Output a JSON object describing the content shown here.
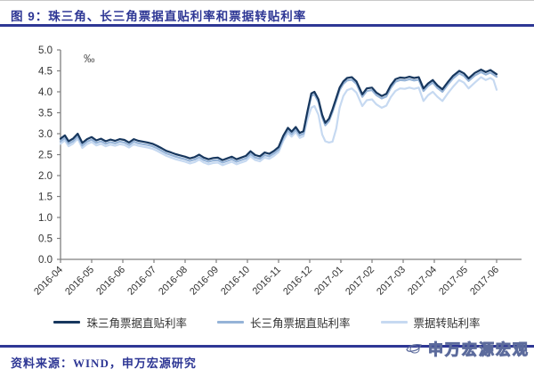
{
  "header": {
    "title": "图 9：珠三角、长三角票据直贴利率和票据转贴利率"
  },
  "footer": {
    "source_label": "资料来源：WIND，申万宏源研究",
    "watermark_text": "申万宏源宏观"
  },
  "colors": {
    "accent": "#2e3795",
    "axis": "#7f7f7f",
    "tick_label": "#333333",
    "unit_label": "#595959",
    "watermark_stroke": "#5c6b9c"
  },
  "chart_data": {
    "type": "line",
    "unit_label": "‰",
    "grid": false,
    "legend_position": "bottom",
    "ylim": [
      0.0,
      5.0
    ],
    "y_tick_labels": [
      "0.0",
      "0.5",
      "1.0",
      "1.5",
      "2.0",
      "2.5",
      "3.0",
      "3.5",
      "4.0",
      "4.5",
      "5.0"
    ],
    "x_tick_labels": [
      "2016-04",
      "2016-05",
      "2016-06",
      "2016-07",
      "2016-08",
      "2016-09",
      "2016-10",
      "2016-11",
      "2016-12",
      "2017-01",
      "2017-02",
      "2017-03",
      "2017-04",
      "2017-05",
      "2017-06"
    ],
    "x_unit": "months since 2016-04",
    "series": [
      {
        "name": "珠三角票据直贴利率",
        "color": "#17375e",
        "points": [
          [
            0,
            2.88
          ],
          [
            0.14,
            2.96
          ],
          [
            0.26,
            2.82
          ],
          [
            0.4,
            2.88
          ],
          [
            0.55,
            3.0
          ],
          [
            0.7,
            2.78
          ],
          [
            0.85,
            2.87
          ],
          [
            1,
            2.92
          ],
          [
            1.15,
            2.84
          ],
          [
            1.3,
            2.88
          ],
          [
            1.45,
            2.82
          ],
          [
            1.6,
            2.86
          ],
          [
            1.75,
            2.83
          ],
          [
            1.9,
            2.87
          ],
          [
            2.05,
            2.85
          ],
          [
            2.2,
            2.79
          ],
          [
            2.35,
            2.87
          ],
          [
            2.5,
            2.83
          ],
          [
            2.65,
            2.81
          ],
          [
            2.8,
            2.79
          ],
          [
            2.95,
            2.76
          ],
          [
            3.1,
            2.71
          ],
          [
            3.25,
            2.65
          ],
          [
            3.4,
            2.59
          ],
          [
            3.55,
            2.55
          ],
          [
            3.7,
            2.51
          ],
          [
            3.85,
            2.48
          ],
          [
            4,
            2.45
          ],
          [
            4.15,
            2.41
          ],
          [
            4.3,
            2.44
          ],
          [
            4.45,
            2.5
          ],
          [
            4.6,
            2.43
          ],
          [
            4.75,
            2.39
          ],
          [
            4.9,
            2.42
          ],
          [
            5.05,
            2.43
          ],
          [
            5.2,
            2.37
          ],
          [
            5.35,
            2.41
          ],
          [
            5.5,
            2.45
          ],
          [
            5.65,
            2.39
          ],
          [
            5.8,
            2.43
          ],
          [
            5.95,
            2.47
          ],
          [
            6.1,
            2.58
          ],
          [
            6.25,
            2.49
          ],
          [
            6.4,
            2.46
          ],
          [
            6.55,
            2.55
          ],
          [
            6.7,
            2.52
          ],
          [
            6.85,
            2.59
          ],
          [
            7,
            2.68
          ],
          [
            7.15,
            2.95
          ],
          [
            7.3,
            3.14
          ],
          [
            7.42,
            3.05
          ],
          [
            7.55,
            3.16
          ],
          [
            7.68,
            3.02
          ],
          [
            7.8,
            3.06
          ],
          [
            7.93,
            3.55
          ],
          [
            8.05,
            3.96
          ],
          [
            8.15,
            4.0
          ],
          [
            8.28,
            3.82
          ],
          [
            8.4,
            3.45
          ],
          [
            8.5,
            3.26
          ],
          [
            8.62,
            3.36
          ],
          [
            8.73,
            3.58
          ],
          [
            8.85,
            3.85
          ],
          [
            8.96,
            4.1
          ],
          [
            9.08,
            4.25
          ],
          [
            9.2,
            4.33
          ],
          [
            9.35,
            4.35
          ],
          [
            9.5,
            4.25
          ],
          [
            9.69,
            3.94
          ],
          [
            9.83,
            4.08
          ],
          [
            10,
            4.1
          ],
          [
            10.14,
            3.98
          ],
          [
            10.31,
            3.9
          ],
          [
            10.46,
            3.95
          ],
          [
            10.6,
            4.15
          ],
          [
            10.75,
            4.3
          ],
          [
            10.9,
            4.34
          ],
          [
            11.05,
            4.33
          ],
          [
            11.2,
            4.36
          ],
          [
            11.35,
            4.33
          ],
          [
            11.5,
            4.35
          ],
          [
            11.65,
            4.08
          ],
          [
            11.8,
            4.2
          ],
          [
            11.95,
            4.28
          ],
          [
            12.1,
            4.15
          ],
          [
            12.26,
            4.06
          ],
          [
            12.45,
            4.25
          ],
          [
            12.6,
            4.38
          ],
          [
            12.8,
            4.5
          ],
          [
            12.95,
            4.44
          ],
          [
            13.1,
            4.32
          ],
          [
            13.3,
            4.45
          ],
          [
            13.5,
            4.53
          ],
          [
            13.65,
            4.47
          ],
          [
            13.8,
            4.52
          ],
          [
            13.9,
            4.47
          ],
          [
            14,
            4.42
          ]
        ]
      },
      {
        "name": "长三角票据直贴利率",
        "color": "#95b3d7",
        "points": [
          [
            0,
            2.82
          ],
          [
            0.14,
            2.9
          ],
          [
            0.26,
            2.76
          ],
          [
            0.4,
            2.82
          ],
          [
            0.55,
            2.94
          ],
          [
            0.7,
            2.72
          ],
          [
            0.85,
            2.81
          ],
          [
            1,
            2.86
          ],
          [
            1.15,
            2.78
          ],
          [
            1.3,
            2.82
          ],
          [
            1.45,
            2.76
          ],
          [
            1.6,
            2.8
          ],
          [
            1.75,
            2.77
          ],
          [
            1.9,
            2.81
          ],
          [
            2.05,
            2.79
          ],
          [
            2.2,
            2.73
          ],
          [
            2.35,
            2.81
          ],
          [
            2.5,
            2.77
          ],
          [
            2.65,
            2.75
          ],
          [
            2.8,
            2.73
          ],
          [
            2.95,
            2.7
          ],
          [
            3.1,
            2.65
          ],
          [
            3.25,
            2.59
          ],
          [
            3.4,
            2.53
          ],
          [
            3.55,
            2.49
          ],
          [
            3.7,
            2.45
          ],
          [
            3.85,
            2.42
          ],
          [
            4,
            2.39
          ],
          [
            4.15,
            2.35
          ],
          [
            4.3,
            2.38
          ],
          [
            4.45,
            2.44
          ],
          [
            4.6,
            2.37
          ],
          [
            4.75,
            2.33
          ],
          [
            4.9,
            2.36
          ],
          [
            5.05,
            2.37
          ],
          [
            5.2,
            2.31
          ],
          [
            5.35,
            2.35
          ],
          [
            5.5,
            2.39
          ],
          [
            5.65,
            2.33
          ],
          [
            5.8,
            2.37
          ],
          [
            5.95,
            2.41
          ],
          [
            6.1,
            2.52
          ],
          [
            6.25,
            2.43
          ],
          [
            6.4,
            2.4
          ],
          [
            6.55,
            2.49
          ],
          [
            6.7,
            2.46
          ],
          [
            6.85,
            2.53
          ],
          [
            7,
            2.62
          ],
          [
            7.15,
            2.89
          ],
          [
            7.3,
            3.08
          ],
          [
            7.42,
            2.99
          ],
          [
            7.55,
            3.1
          ],
          [
            7.68,
            2.96
          ],
          [
            7.8,
            3.0
          ],
          [
            7.93,
            3.49
          ],
          [
            8.05,
            3.9
          ],
          [
            8.15,
            3.94
          ],
          [
            8.28,
            3.76
          ],
          [
            8.4,
            3.39
          ],
          [
            8.5,
            3.2
          ],
          [
            8.62,
            3.3
          ],
          [
            8.73,
            3.52
          ],
          [
            8.85,
            3.79
          ],
          [
            8.96,
            4.04
          ],
          [
            9.08,
            4.19
          ],
          [
            9.2,
            4.27
          ],
          [
            9.35,
            4.29
          ],
          [
            9.5,
            4.19
          ],
          [
            9.69,
            3.88
          ],
          [
            9.83,
            4.02
          ],
          [
            10,
            4.04
          ],
          [
            10.14,
            3.92
          ],
          [
            10.31,
            3.84
          ],
          [
            10.46,
            3.89
          ],
          [
            10.6,
            4.09
          ],
          [
            10.75,
            4.24
          ],
          [
            10.9,
            4.28
          ],
          [
            11.05,
            4.27
          ],
          [
            11.2,
            4.3
          ],
          [
            11.35,
            4.27
          ],
          [
            11.5,
            4.29
          ],
          [
            11.65,
            4.02
          ],
          [
            11.8,
            4.14
          ],
          [
            11.95,
            4.22
          ],
          [
            12.1,
            4.09
          ],
          [
            12.26,
            4.0
          ],
          [
            12.45,
            4.19
          ],
          [
            12.6,
            4.32
          ],
          [
            12.8,
            4.44
          ],
          [
            12.95,
            4.38
          ],
          [
            13.1,
            4.26
          ],
          [
            13.3,
            4.39
          ],
          [
            13.5,
            4.47
          ],
          [
            13.65,
            4.41
          ],
          [
            13.8,
            4.46
          ],
          [
            13.9,
            4.41
          ],
          [
            14,
            4.36
          ]
        ]
      },
      {
        "name": "票据转贴利率",
        "color": "#c6d9f1",
        "points": [
          [
            0,
            2.76
          ],
          [
            0.14,
            2.84
          ],
          [
            0.26,
            2.7
          ],
          [
            0.4,
            2.76
          ],
          [
            0.55,
            2.88
          ],
          [
            0.7,
            2.66
          ],
          [
            0.85,
            2.75
          ],
          [
            1,
            2.8
          ],
          [
            1.15,
            2.72
          ],
          [
            1.3,
            2.76
          ],
          [
            1.45,
            2.7
          ],
          [
            1.6,
            2.74
          ],
          [
            1.75,
            2.71
          ],
          [
            1.9,
            2.75
          ],
          [
            2.05,
            2.73
          ],
          [
            2.2,
            2.67
          ],
          [
            2.35,
            2.75
          ],
          [
            2.5,
            2.71
          ],
          [
            2.65,
            2.69
          ],
          [
            2.8,
            2.67
          ],
          [
            2.95,
            2.64
          ],
          [
            3.1,
            2.59
          ],
          [
            3.25,
            2.53
          ],
          [
            3.4,
            2.47
          ],
          [
            3.55,
            2.43
          ],
          [
            3.7,
            2.39
          ],
          [
            3.85,
            2.36
          ],
          [
            4,
            2.33
          ],
          [
            4.15,
            2.29
          ],
          [
            4.3,
            2.32
          ],
          [
            4.45,
            2.38
          ],
          [
            4.6,
            2.31
          ],
          [
            4.75,
            2.27
          ],
          [
            4.9,
            2.3
          ],
          [
            5.05,
            2.31
          ],
          [
            5.2,
            2.25
          ],
          [
            5.35,
            2.29
          ],
          [
            5.5,
            2.33
          ],
          [
            5.65,
            2.27
          ],
          [
            5.8,
            2.31
          ],
          [
            5.95,
            2.35
          ],
          [
            6.1,
            2.46
          ],
          [
            6.25,
            2.37
          ],
          [
            6.4,
            2.34
          ],
          [
            6.55,
            2.43
          ],
          [
            6.7,
            2.4
          ],
          [
            6.85,
            2.47
          ],
          [
            7,
            2.56
          ],
          [
            7.15,
            2.83
          ],
          [
            7.3,
            3.02
          ],
          [
            7.42,
            2.93
          ],
          [
            7.55,
            3.04
          ],
          [
            7.68,
            2.9
          ],
          [
            7.8,
            2.94
          ],
          [
            7.93,
            3.35
          ],
          [
            8.05,
            3.62
          ],
          [
            8.15,
            3.66
          ],
          [
            8.28,
            3.45
          ],
          [
            8.4,
            2.98
          ],
          [
            8.5,
            2.82
          ],
          [
            8.62,
            2.79
          ],
          [
            8.73,
            2.81
          ],
          [
            8.85,
            3.12
          ],
          [
            8.96,
            3.62
          ],
          [
            9.08,
            3.9
          ],
          [
            9.2,
            4.04
          ],
          [
            9.35,
            4.08
          ],
          [
            9.5,
            3.98
          ],
          [
            9.69,
            3.66
          ],
          [
            9.83,
            3.8
          ],
          [
            10,
            3.82
          ],
          [
            10.14,
            3.7
          ],
          [
            10.31,
            3.62
          ],
          [
            10.46,
            3.67
          ],
          [
            10.6,
            3.87
          ],
          [
            10.75,
            4.02
          ],
          [
            10.9,
            4.08
          ],
          [
            11.05,
            4.07
          ],
          [
            11.2,
            4.1
          ],
          [
            11.35,
            4.07
          ],
          [
            11.5,
            4.1
          ],
          [
            11.65,
            3.78
          ],
          [
            11.8,
            3.92
          ],
          [
            11.95,
            4.0
          ],
          [
            12.1,
            3.88
          ],
          [
            12.26,
            3.78
          ],
          [
            12.45,
            3.98
          ],
          [
            12.6,
            4.12
          ],
          [
            12.8,
            4.28
          ],
          [
            12.95,
            4.22
          ],
          [
            13.1,
            4.08
          ],
          [
            13.3,
            4.22
          ],
          [
            13.5,
            4.35
          ],
          [
            13.65,
            4.28
          ],
          [
            13.8,
            4.33
          ],
          [
            13.9,
            4.28
          ],
          [
            14,
            4.05
          ]
        ]
      }
    ]
  }
}
